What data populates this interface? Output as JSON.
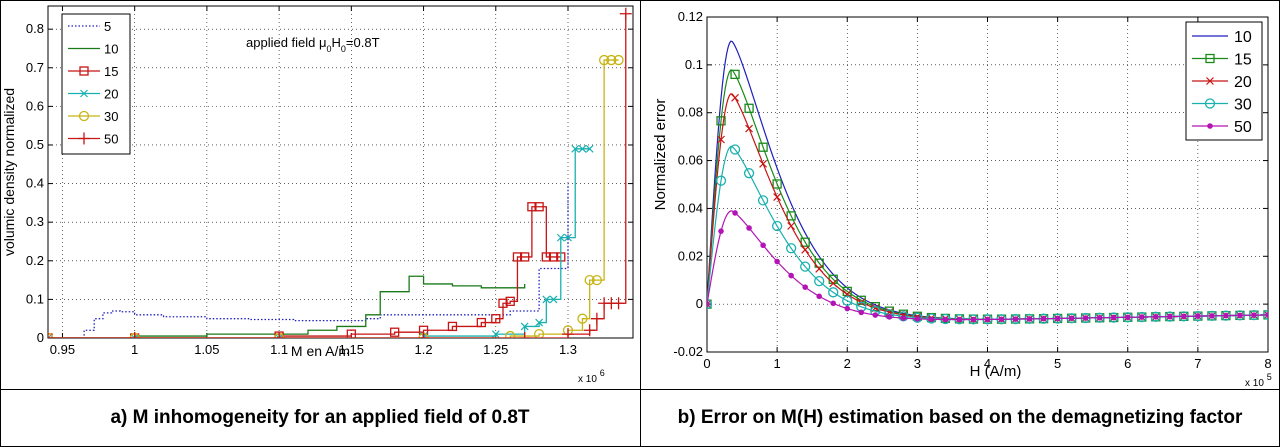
{
  "captions": {
    "a": "a)  M inhomogeneity for an applied field of 0.8T",
    "b": "b)  Error on  M(H) estimation based on the demagnetizing factor"
  },
  "chart_data": [
    {
      "type": "line",
      "xlabel": "M en A/m",
      "ylabel": "volumic density normalized",
      "annotation": "applied field μ0H0=0.8T",
      "x_exponent_label": "x 10",
      "x_exponent": "6",
      "xlim": [
        0.94,
        1.345
      ],
      "ylim": [
        0,
        0.86
      ],
      "xticks": [
        "0.95",
        "1",
        "1.05",
        "1.1",
        "1.15",
        "1.2",
        "1.25",
        "1.3"
      ],
      "yticks": [
        "0",
        "0.1",
        "0.2",
        "0.3",
        "0.4",
        "0.5",
        "0.6",
        "0.7",
        "0.8"
      ],
      "grid": true,
      "legend_position": "top-left",
      "series": [
        {
          "name": "5",
          "color": "#1f1fbf",
          "marker": "none",
          "dash": "dotted",
          "x": [
            0.94,
            0.955,
            0.965,
            0.972,
            0.978,
            0.984,
            0.99,
            1.0,
            1.02,
            1.05,
            1.08,
            1.11,
            1.14,
            1.16,
            1.17,
            1.2,
            1.23,
            1.26,
            1.28,
            1.3
          ],
          "y": [
            0,
            0,
            0.02,
            0.05,
            0.065,
            0.07,
            0.068,
            0.06,
            0.055,
            0.05,
            0.048,
            0.045,
            0.045,
            0.05,
            0.06,
            0.06,
            0.06,
            0.07,
            0.18,
            0.4
          ]
        },
        {
          "name": "10",
          "color": "#1a7a1a",
          "marker": "none",
          "dash": "solid",
          "x": [
            0.94,
            1.0,
            1.05,
            1.1,
            1.12,
            1.14,
            1.15,
            1.16,
            1.17,
            1.18,
            1.19,
            1.2,
            1.22,
            1.24,
            1.25,
            1.26,
            1.27
          ],
          "y": [
            0,
            0.005,
            0.01,
            0.01,
            0.02,
            0.03,
            0.03,
            0.06,
            0.12,
            0.12,
            0.16,
            0.14,
            0.135,
            0.13,
            0.13,
            0.13,
            0.14
          ]
        },
        {
          "name": "15",
          "color": "#c81414",
          "marker": "square",
          "dash": "solid",
          "x": [
            0.94,
            1.0,
            1.1,
            1.15,
            1.18,
            1.2,
            1.22,
            1.24,
            1.25,
            1.255,
            1.26,
            1.265,
            1.27,
            1.275,
            1.28,
            1.285,
            1.29,
            1.295
          ],
          "y": [
            0,
            0,
            0.005,
            0.01,
            0.015,
            0.02,
            0.03,
            0.04,
            0.05,
            0.09,
            0.095,
            0.21,
            0.21,
            0.34,
            0.34,
            0.21,
            0.21,
            0.21
          ]
        },
        {
          "name": "20",
          "color": "#1ab0b0",
          "marker": "x",
          "dash": "solid",
          "x": [
            0.94,
            1.0,
            1.1,
            1.2,
            1.25,
            1.27,
            1.28,
            1.285,
            1.29,
            1.295,
            1.3,
            1.305,
            1.31,
            1.315
          ],
          "y": [
            0,
            0,
            0,
            0.005,
            0.01,
            0.03,
            0.04,
            0.1,
            0.1,
            0.26,
            0.26,
            0.49,
            0.49,
            0.49
          ]
        },
        {
          "name": "30",
          "color": "#c8b414",
          "marker": "circle",
          "dash": "solid",
          "x": [
            0.94,
            1.0,
            1.1,
            1.2,
            1.26,
            1.28,
            1.3,
            1.31,
            1.315,
            1.32,
            1.325,
            1.33,
            1.335
          ],
          "y": [
            0,
            0,
            0,
            0,
            0.005,
            0.01,
            0.02,
            0.05,
            0.15,
            0.15,
            0.72,
            0.72,
            0.72
          ]
        },
        {
          "name": "50",
          "color": "#c81414",
          "marker": "plus",
          "dash": "solid",
          "x": [
            0.94,
            1.0,
            1.1,
            1.2,
            1.27,
            1.3,
            1.315,
            1.32,
            1.325,
            1.33,
            1.335,
            1.34
          ],
          "y": [
            0,
            0,
            0,
            0,
            0,
            0.01,
            0.02,
            0.05,
            0.09,
            0.09,
            0.09,
            0.84
          ]
        }
      ]
    },
    {
      "type": "line",
      "xlabel": "H (A/m)",
      "ylabel": "Normalized error",
      "x_exponent_label": "x 10",
      "x_exponent": "5",
      "xlim": [
        0,
        8
      ],
      "ylim": [
        -0.02,
        0.12
      ],
      "xticks": [
        "0",
        "1",
        "2",
        "3",
        "4",
        "5",
        "6",
        "7",
        "8"
      ],
      "yticks": [
        "-0.02",
        "0",
        "0.02",
        "0.04",
        "0.06",
        "0.08",
        "0.1",
        "0.12"
      ],
      "grid": true,
      "legend_position": "top-right",
      "series": [
        {
          "name": "10",
          "color": "#1f1fbf",
          "marker": "none",
          "peak": 0.11
        },
        {
          "name": "15",
          "color": "#1a8a1a",
          "marker": "square",
          "peak": 0.098
        },
        {
          "name": "20",
          "color": "#c81414",
          "marker": "x",
          "peak": 0.088
        },
        {
          "name": "30",
          "color": "#1ab0b0",
          "marker": "circle",
          "peak": 0.066
        },
        {
          "name": "50",
          "color": "#b414b4",
          "marker": "dot",
          "peak": 0.039
        }
      ]
    }
  ]
}
